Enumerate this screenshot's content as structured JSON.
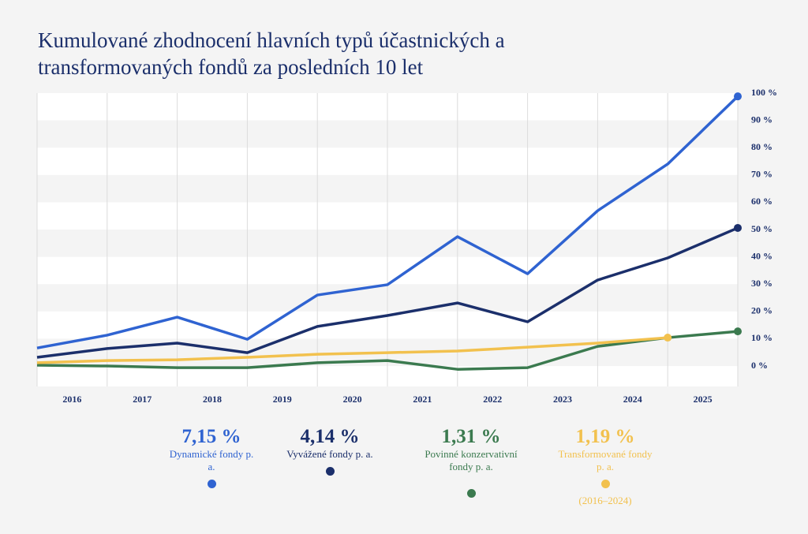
{
  "chart_data": {
    "type": "line",
    "title": "Kumulované zhodnocení hlavních typů účastnických a transformovaných fondů za posledních 10 let",
    "categories": [
      null,
      "2016",
      "2017",
      "2018",
      "2019",
      "2020",
      "2021",
      "2022",
      "2023",
      "2024",
      "2025"
    ],
    "series": [
      {
        "name": "Dynamické fondy p. a.",
        "annual_return": "7,15 %",
        "color": "#2f63d1",
        "values": [
          6.6,
          11.3,
          17.9,
          9.8,
          26,
          29.8,
          47.4,
          33.8,
          56.9,
          74,
          98.8
        ]
      },
      {
        "name": "Vyvážené fondy p. a.",
        "annual_return": "4,14 %",
        "color": "#1b2f6b",
        "values": [
          3.2,
          6.4,
          8.4,
          4.9,
          14.5,
          18.5,
          23.1,
          16.2,
          31.5,
          39.6,
          50.6
        ]
      },
      {
        "name": "Povinné konzervativní fondy p. a.",
        "annual_return": "1,31 %",
        "color": "#3b7a4f",
        "values": [
          0.3,
          0,
          -0.6,
          -0.6,
          1.2,
          2,
          -1.2,
          -0.6,
          7.2,
          10.4,
          12.7
        ]
      },
      {
        "name": "Transformované fondy p. a.",
        "annual_return": "1,19 %",
        "color": "#f2c14e",
        "note": "(2016–2024)",
        "values": [
          1.2,
          2,
          2.3,
          3.2,
          4.3,
          4.9,
          5.5,
          6.9,
          8.4,
          10.4,
          null
        ]
      }
    ],
    "ylim": [
      -7.5,
      100
    ],
    "yticks": [
      {
        "value": 0,
        "label": "0 %"
      },
      {
        "value": 10,
        "label": "10 %"
      },
      {
        "value": 20,
        "label": "20 %"
      },
      {
        "value": 30,
        "label": "30 %"
      },
      {
        "value": 40,
        "label": "40 %"
      },
      {
        "value": 50,
        "label": "50 %"
      },
      {
        "value": 60,
        "label": "60 %"
      },
      {
        "value": 70,
        "label": "70 %"
      },
      {
        "value": 80,
        "label": "80 %"
      },
      {
        "value": 90,
        "label": "90 %"
      },
      {
        "value": 100,
        "label": "100 %"
      }
    ],
    "grid": true
  }
}
